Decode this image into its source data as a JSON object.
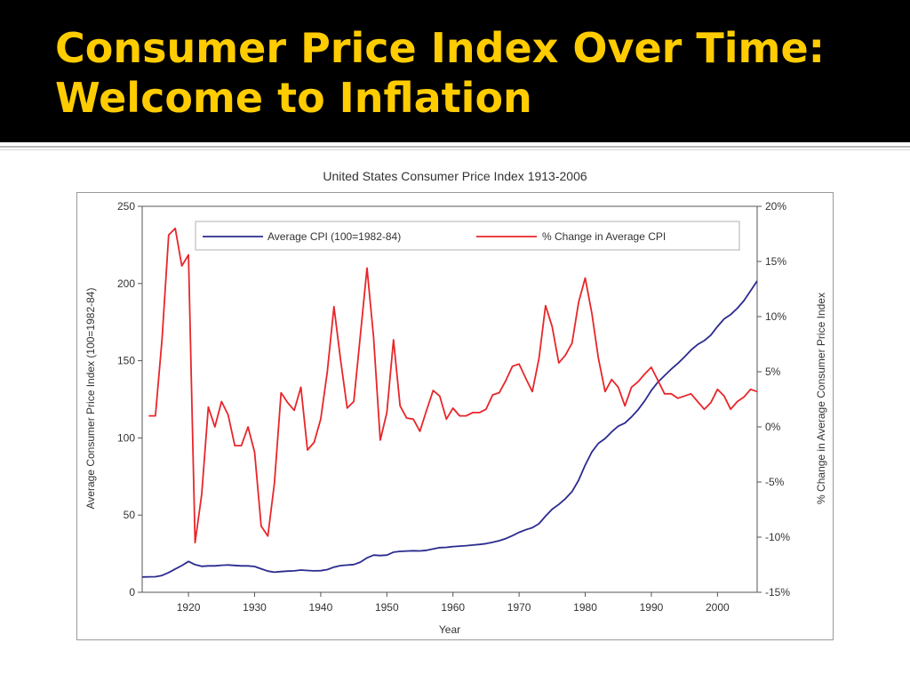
{
  "slide": {
    "title_line1": "Consumer Price Index Over Time:",
    "title_line2": "Welcome to Inflation"
  },
  "colors": {
    "header_bg": "#000000",
    "title": "#FFCC00",
    "cpi_line": "#2B2B8F",
    "pct_line": "#E8262A"
  },
  "chart_data": {
    "type": "line",
    "title": "United States Consumer Price Index 1913-2006",
    "xlabel": "Year",
    "ylabel_left": "Average Consumer Price Index (100=1982-84)",
    "ylabel_right": "% Change in Average Consumer Price Index",
    "xlim": [
      1913,
      2006
    ],
    "ylim_left": [
      0,
      250
    ],
    "ylim_right": [
      -15,
      20
    ],
    "x_ticks": [
      1920,
      1930,
      1940,
      1950,
      1960,
      1970,
      1980,
      1990,
      2000
    ],
    "y_ticks_left": [
      0,
      50,
      100,
      150,
      200,
      250
    ],
    "y_ticks_right": [
      "-15%",
      "-10%",
      "-5%",
      "0%",
      "5%",
      "10%",
      "15%",
      "20%"
    ],
    "grid": false,
    "legend_position": "top",
    "series": [
      {
        "name": "Average CPI (100=1982-84)",
        "axis": "left",
        "color": "#2B2B8F",
        "x": [
          1913,
          1914,
          1915,
          1916,
          1917,
          1918,
          1919,
          1920,
          1921,
          1922,
          1923,
          1924,
          1925,
          1926,
          1927,
          1928,
          1929,
          1930,
          1931,
          1932,
          1933,
          1934,
          1935,
          1936,
          1937,
          1938,
          1939,
          1940,
          1941,
          1942,
          1943,
          1944,
          1945,
          1946,
          1947,
          1948,
          1949,
          1950,
          1951,
          1952,
          1953,
          1954,
          1955,
          1956,
          1957,
          1958,
          1959,
          1960,
          1961,
          1962,
          1963,
          1964,
          1965,
          1966,
          1967,
          1968,
          1969,
          1970,
          1971,
          1972,
          1973,
          1974,
          1975,
          1976,
          1977,
          1978,
          1979,
          1980,
          1981,
          1982,
          1983,
          1984,
          1985,
          1986,
          1987,
          1988,
          1989,
          1990,
          1991,
          1992,
          1993,
          1994,
          1995,
          1996,
          1997,
          1998,
          1999,
          2000,
          2001,
          2002,
          2003,
          2004,
          2005,
          2006
        ],
        "values": [
          9.9,
          10.0,
          10.1,
          10.9,
          12.8,
          15.1,
          17.3,
          20.0,
          17.9,
          16.8,
          17.1,
          17.1,
          17.5,
          17.7,
          17.4,
          17.1,
          17.1,
          16.7,
          15.2,
          13.7,
          13.0,
          13.4,
          13.7,
          13.9,
          14.4,
          14.1,
          13.9,
          14.0,
          14.7,
          16.3,
          17.3,
          17.6,
          18.0,
          19.5,
          22.3,
          24.1,
          23.8,
          24.1,
          26.0,
          26.5,
          26.7,
          26.9,
          26.8,
          27.2,
          28.1,
          28.9,
          29.1,
          29.6,
          29.9,
          30.2,
          30.6,
          31.0,
          31.5,
          32.4,
          33.4,
          34.8,
          36.7,
          38.8,
          40.5,
          41.8,
          44.4,
          49.3,
          53.8,
          56.9,
          60.6,
          65.2,
          72.6,
          82.4,
          90.9,
          96.5,
          99.6,
          103.9,
          107.6,
          109.6,
          113.6,
          118.3,
          124.0,
          130.7,
          136.2,
          140.3,
          144.5,
          148.2,
          152.4,
          156.9,
          160.5,
          163.0,
          166.6,
          172.2,
          177.1,
          179.9,
          184.0,
          188.9,
          195.3,
          201.6
        ]
      },
      {
        "name": "% Change in Average CPI",
        "axis": "right",
        "color": "#E8262A",
        "x": [
          1914,
          1915,
          1916,
          1917,
          1918,
          1919,
          1920,
          1921,
          1922,
          1923,
          1924,
          1925,
          1926,
          1927,
          1928,
          1929,
          1930,
          1931,
          1932,
          1933,
          1934,
          1935,
          1936,
          1937,
          1938,
          1939,
          1940,
          1941,
          1942,
          1943,
          1944,
          1945,
          1946,
          1947,
          1948,
          1949,
          1950,
          1951,
          1952,
          1953,
          1954,
          1955,
          1956,
          1957,
          1958,
          1959,
          1960,
          1961,
          1962,
          1963,
          1964,
          1965,
          1966,
          1967,
          1968,
          1969,
          1970,
          1971,
          1972,
          1973,
          1974,
          1975,
          1976,
          1977,
          1978,
          1979,
          1980,
          1981,
          1982,
          1983,
          1984,
          1985,
          1986,
          1987,
          1988,
          1989,
          1990,
          1991,
          1992,
          1993,
          1994,
          1995,
          1996,
          1997,
          1998,
          1999,
          2000,
          2001,
          2002,
          2003,
          2004,
          2005,
          2006
        ],
        "values": [
          1.0,
          1.0,
          7.9,
          17.4,
          18.0,
          14.6,
          15.6,
          -10.5,
          -6.1,
          1.8,
          0.0,
          2.3,
          1.1,
          -1.7,
          -1.7,
          0.0,
          -2.3,
          -9.0,
          -9.9,
          -5.1,
          3.1,
          2.2,
          1.5,
          3.6,
          -2.1,
          -1.4,
          0.7,
          5.0,
          10.9,
          6.1,
          1.7,
          2.3,
          8.3,
          14.4,
          8.1,
          -1.2,
          1.3,
          7.9,
          1.9,
          0.8,
          0.7,
          -0.4,
          1.5,
          3.3,
          2.8,
          0.7,
          1.7,
          1.0,
          1.0,
          1.3,
          1.3,
          1.6,
          2.9,
          3.1,
          4.2,
          5.5,
          5.7,
          4.4,
          3.2,
          6.2,
          11.0,
          9.1,
          5.8,
          6.5,
          7.6,
          11.3,
          13.5,
          10.3,
          6.2,
          3.2,
          4.3,
          3.6,
          1.9,
          3.6,
          4.1,
          4.8,
          5.4,
          4.2,
          3.0,
          3.0,
          2.6,
          2.8,
          3.0,
          2.3,
          1.6,
          2.2,
          3.4,
          2.8,
          1.6,
          2.3,
          2.7,
          3.4,
          3.2
        ]
      }
    ]
  }
}
